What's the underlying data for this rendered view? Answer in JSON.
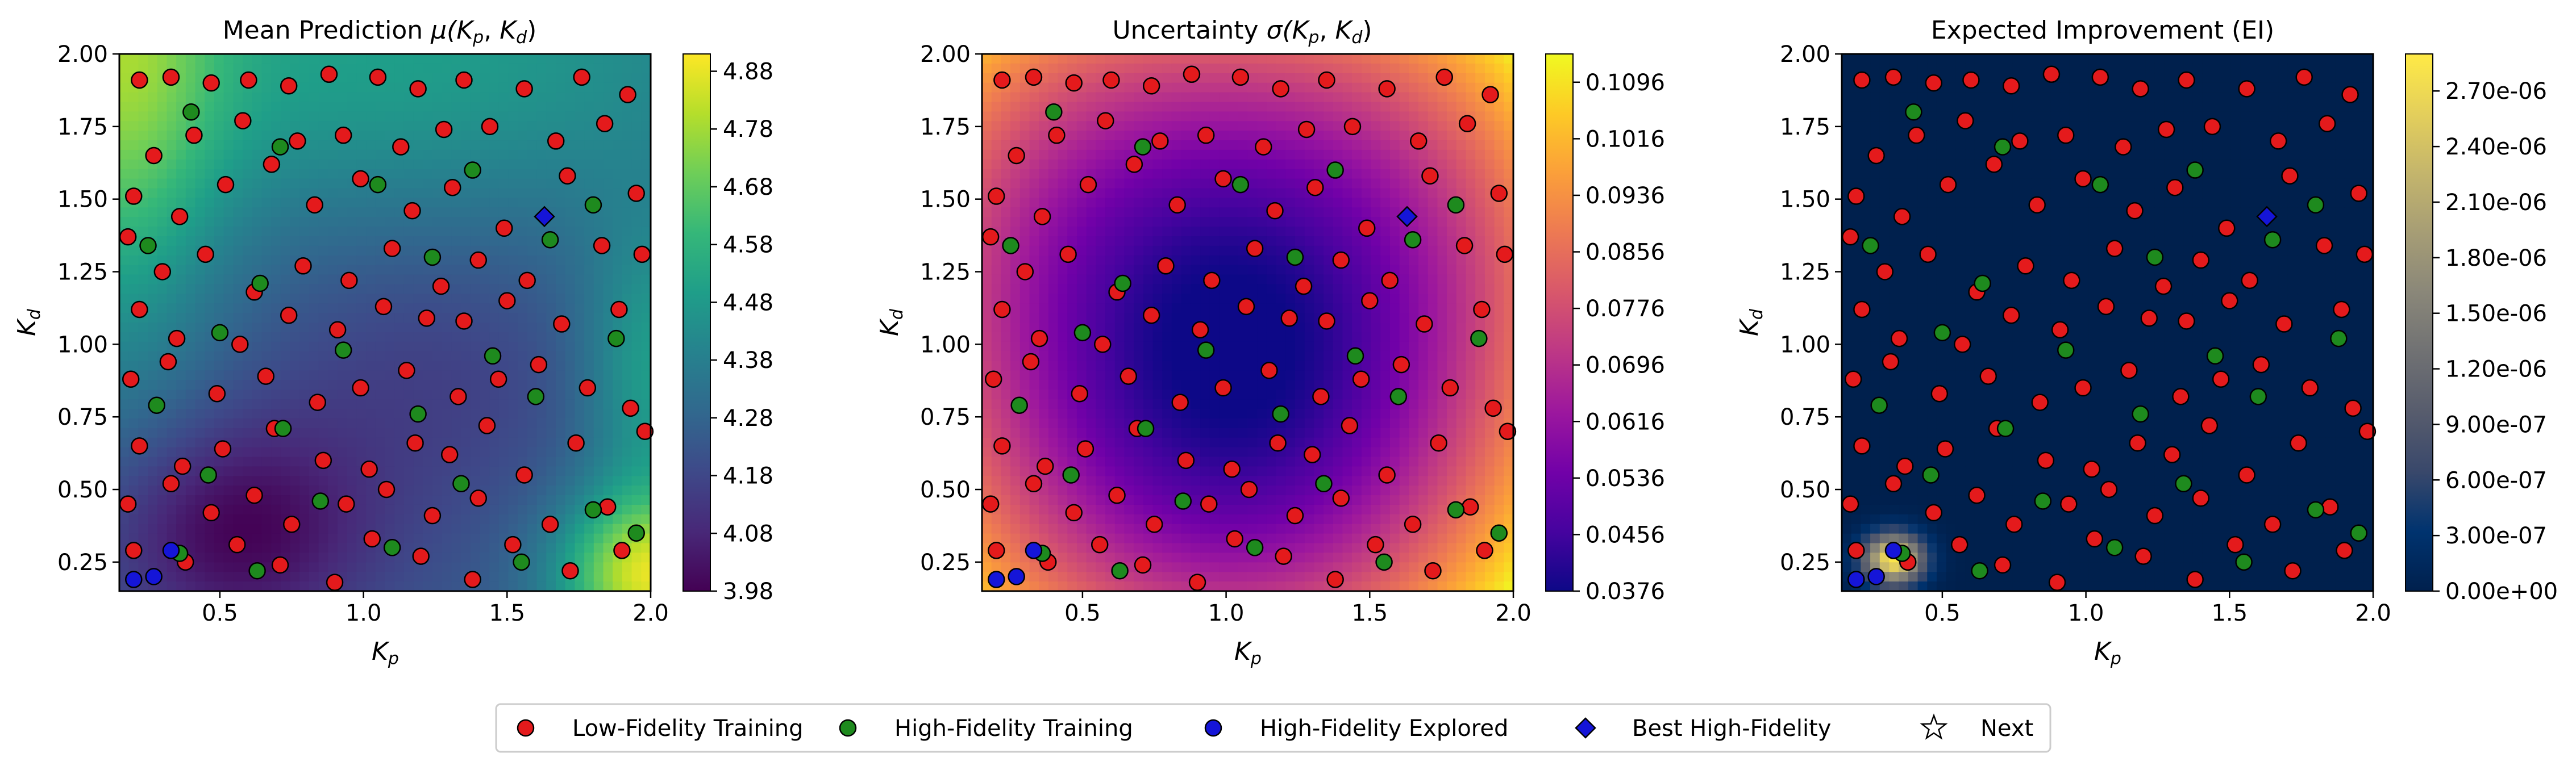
{
  "chart_data": [
    {
      "type": "heatmap",
      "title": "Mean Prediction μ(Kp, Kd)",
      "title_main": "Mean Prediction ",
      "title_math": "μ(",
      "title_var1": "K",
      "title_sub1": "p",
      "title_sep": ", ",
      "title_var2": "K",
      "title_sub2": "d",
      "title_end": ")",
      "xlabel_var": "K",
      "xlabel_sub": "p",
      "ylabel_var": "K",
      "ylabel_sub": "d",
      "xlim": [
        0.15,
        2.0
      ],
      "ylim": [
        0.15,
        2.0
      ],
      "x_ticks": [
        "0.5",
        "1.0",
        "1.5",
        "2.0"
      ],
      "y_ticks": [
        "0.25",
        "0.50",
        "0.75",
        "1.00",
        "1.25",
        "1.50",
        "1.75",
        "2.00"
      ],
      "colorbar_range": [
        3.98,
        4.91
      ],
      "colorbar_ticks": [
        "3.98",
        "4.08",
        "4.18",
        "4.28",
        "4.38",
        "4.48",
        "4.58",
        "4.68",
        "4.78",
        "4.88"
      ],
      "colormap": "viridis",
      "field": "mean"
    },
    {
      "type": "heatmap",
      "title": "Uncertainty σ(Kp, Kd)",
      "title_main": "Uncertainty ",
      "title_math": "σ(",
      "title_var1": "K",
      "title_sub1": "p",
      "title_sep": ", ",
      "title_var2": "K",
      "title_sub2": "d",
      "title_end": ")",
      "xlabel_var": "K",
      "xlabel_sub": "p",
      "ylabel_var": "K",
      "ylabel_sub": "d",
      "xlim": [
        0.15,
        2.0
      ],
      "ylim": [
        0.15,
        2.0
      ],
      "x_ticks": [
        "0.5",
        "1.0",
        "1.5",
        "2.0"
      ],
      "y_ticks": [
        "0.25",
        "0.50",
        "0.75",
        "1.00",
        "1.25",
        "1.50",
        "1.75",
        "2.00"
      ],
      "colorbar_range": [
        0.0376,
        0.1136
      ],
      "colorbar_ticks": [
        "0.0376",
        "0.0456",
        "0.0536",
        "0.0616",
        "0.0696",
        "0.0776",
        "0.0856",
        "0.0936",
        "0.1016",
        "0.1096"
      ],
      "colormap": "plasma",
      "field": "sigma"
    },
    {
      "type": "heatmap",
      "title": "Expected Improvement (EI)",
      "title_main": "Expected Improvement (EI)",
      "title_math": "",
      "title_var1": "",
      "title_sub1": "",
      "title_sep": "",
      "title_var2": "",
      "title_sub2": "",
      "title_end": "",
      "xlabel_var": "K",
      "xlabel_sub": "p",
      "ylabel_var": "K",
      "ylabel_sub": "d",
      "xlim": [
        0.15,
        2.0
      ],
      "ylim": [
        0.15,
        2.0
      ],
      "x_ticks": [
        "0.5",
        "1.0",
        "1.5",
        "2.0"
      ],
      "y_ticks": [
        "0.25",
        "0.50",
        "0.75",
        "1.00",
        "1.25",
        "1.50",
        "1.75",
        "2.00"
      ],
      "colorbar_range": [
        0,
        2.9e-06
      ],
      "colorbar_ticks": [
        "0.00e+00",
        "3.00e-07",
        "6.00e-07",
        "9.00e-07",
        "1.20e-06",
        "1.50e-06",
        "1.80e-06",
        "2.10e-06",
        "2.40e-06",
        "2.70e-06"
      ],
      "colormap": "cividis",
      "field": "ei"
    }
  ],
  "points": {
    "low_fidelity": [
      [
        0.22,
        1.91
      ],
      [
        0.33,
        1.92
      ],
      [
        0.47,
        1.9
      ],
      [
        0.6,
        1.91
      ],
      [
        0.74,
        1.89
      ],
      [
        0.88,
        1.93
      ],
      [
        1.05,
        1.92
      ],
      [
        1.19,
        1.88
      ],
      [
        1.35,
        1.91
      ],
      [
        1.56,
        1.88
      ],
      [
        1.76,
        1.92
      ],
      [
        1.92,
        1.86
      ],
      [
        0.27,
        1.65
      ],
      [
        0.41,
        1.72
      ],
      [
        0.58,
        1.77
      ],
      [
        0.77,
        1.7
      ],
      [
        0.93,
        1.72
      ],
      [
        1.13,
        1.68
      ],
      [
        1.28,
        1.74
      ],
      [
        1.44,
        1.75
      ],
      [
        1.67,
        1.7
      ],
      [
        1.84,
        1.76
      ],
      [
        0.2,
        1.51
      ],
      [
        0.36,
        1.44
      ],
      [
        0.52,
        1.55
      ],
      [
        0.68,
        1.62
      ],
      [
        0.83,
        1.48
      ],
      [
        0.99,
        1.57
      ],
      [
        1.17,
        1.46
      ],
      [
        1.31,
        1.54
      ],
      [
        1.49,
        1.4
      ],
      [
        1.71,
        1.58
      ],
      [
        1.95,
        1.52
      ],
      [
        0.18,
        1.37
      ],
      [
        0.3,
        1.25
      ],
      [
        0.45,
        1.31
      ],
      [
        0.62,
        1.18
      ],
      [
        0.79,
        1.27
      ],
      [
        0.95,
        1.22
      ],
      [
        1.1,
        1.33
      ],
      [
        1.27,
        1.2
      ],
      [
        1.4,
        1.29
      ],
      [
        1.57,
        1.22
      ],
      [
        1.83,
        1.34
      ],
      [
        1.97,
        1.31
      ],
      [
        0.22,
        1.12
      ],
      [
        0.35,
        1.02
      ],
      [
        0.57,
        1.0
      ],
      [
        0.74,
        1.1
      ],
      [
        0.91,
        1.05
      ],
      [
        1.07,
        1.13
      ],
      [
        1.22,
        1.09
      ],
      [
        1.35,
        1.08
      ],
      [
        1.5,
        1.15
      ],
      [
        1.69,
        1.07
      ],
      [
        1.89,
        1.12
      ],
      [
        0.19,
        0.88
      ],
      [
        0.32,
        0.94
      ],
      [
        0.49,
        0.83
      ],
      [
        0.66,
        0.89
      ],
      [
        0.84,
        0.8
      ],
      [
        0.99,
        0.85
      ],
      [
        1.15,
        0.91
      ],
      [
        1.33,
        0.82
      ],
      [
        1.47,
        0.88
      ],
      [
        1.61,
        0.93
      ],
      [
        1.78,
        0.85
      ],
      [
        1.93,
        0.78
      ],
      [
        0.22,
        0.65
      ],
      [
        0.37,
        0.58
      ],
      [
        0.51,
        0.64
      ],
      [
        0.69,
        0.71
      ],
      [
        0.86,
        0.6
      ],
      [
        1.02,
        0.57
      ],
      [
        1.18,
        0.66
      ],
      [
        1.3,
        0.62
      ],
      [
        1.43,
        0.72
      ],
      [
        1.56,
        0.55
      ],
      [
        1.74,
        0.66
      ],
      [
        1.98,
        0.7
      ],
      [
        0.18,
        0.45
      ],
      [
        0.33,
        0.52
      ],
      [
        0.47,
        0.42
      ],
      [
        0.62,
        0.48
      ],
      [
        0.75,
        0.38
      ],
      [
        0.94,
        0.45
      ],
      [
        1.08,
        0.5
      ],
      [
        1.24,
        0.41
      ],
      [
        1.4,
        0.47
      ],
      [
        1.65,
        0.38
      ],
      [
        1.85,
        0.44
      ],
      [
        0.2,
        0.29
      ],
      [
        0.38,
        0.25
      ],
      [
        0.56,
        0.31
      ],
      [
        0.71,
        0.24
      ],
      [
        0.9,
        0.18
      ],
      [
        1.03,
        0.33
      ],
      [
        1.2,
        0.27
      ],
      [
        1.38,
        0.19
      ],
      [
        1.52,
        0.31
      ],
      [
        1.72,
        0.22
      ],
      [
        1.9,
        0.29
      ]
    ],
    "high_fidelity": [
      [
        0.4,
        1.8
      ],
      [
        0.71,
        1.68
      ],
      [
        1.05,
        1.55
      ],
      [
        1.38,
        1.6
      ],
      [
        1.8,
        1.48
      ],
      [
        0.25,
        1.34
      ],
      [
        0.64,
        1.21
      ],
      [
        1.24,
        1.3
      ],
      [
        1.65,
        1.36
      ],
      [
        0.5,
        1.04
      ],
      [
        0.93,
        0.98
      ],
      [
        1.45,
        0.96
      ],
      [
        1.88,
        1.02
      ],
      [
        0.28,
        0.79
      ],
      [
        0.72,
        0.71
      ],
      [
        1.19,
        0.76
      ],
      [
        1.6,
        0.82
      ],
      [
        0.46,
        0.55
      ],
      [
        0.85,
        0.46
      ],
      [
        1.34,
        0.52
      ],
      [
        1.8,
        0.43
      ],
      [
        0.36,
        0.28
      ],
      [
        0.63,
        0.22
      ],
      [
        1.1,
        0.3
      ],
      [
        1.55,
        0.25
      ],
      [
        1.95,
        0.35
      ]
    ],
    "hf_explored": [
      [
        0.27,
        0.2
      ],
      [
        0.33,
        0.29
      ],
      [
        0.2,
        0.19
      ]
    ],
    "best": [
      [
        1.63,
        1.44
      ]
    ]
  },
  "legend": {
    "items": [
      {
        "label": "Low-Fidelity Training",
        "color": "#e41a1c",
        "shape": "circle"
      },
      {
        "label": "High-Fidelity Training",
        "color": "#1e8a1e",
        "shape": "circle"
      },
      {
        "label": "High-Fidelity Explored",
        "color": "#1515d8",
        "shape": "circle"
      },
      {
        "label": "Best High-Fidelity",
        "color": "#1515d8",
        "shape": "diamond"
      },
      {
        "label": "Next",
        "color": "#ffffff",
        "shape": "star"
      }
    ]
  }
}
